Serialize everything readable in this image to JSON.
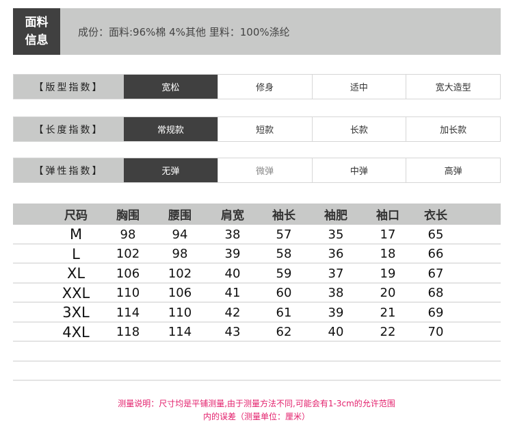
{
  "material": {
    "label_line1": "面料",
    "label_line2": "信息",
    "text": "成份：面料:96%棉 4%其他  里料：100%涤纶"
  },
  "indices": [
    {
      "label": "【版型指数】",
      "options": [
        "宽松",
        "修身",
        "适中",
        "宽大造型"
      ],
      "selected": 0
    },
    {
      "label": "【长度指数】",
      "options": [
        "常规款",
        "短款",
        "长款",
        "加长款"
      ],
      "selected": 0
    },
    {
      "label": "【弹性指数】",
      "options": [
        "无弹",
        "微弹",
        "中弹",
        "高弹"
      ],
      "selected": 0
    }
  ],
  "size_table": {
    "headers": [
      "尺码",
      "胸围",
      "腰围",
      "肩宽",
      "袖长",
      "袖肥",
      "袖口",
      "衣长"
    ],
    "rows": [
      [
        "M",
        "98",
        "94",
        "38",
        "57",
        "35",
        "17",
        "65"
      ],
      [
        "L",
        "102",
        "98",
        "39",
        "58",
        "36",
        "18",
        "66"
      ],
      [
        "XL",
        "106",
        "102",
        "40",
        "59",
        "37",
        "19",
        "67"
      ],
      [
        "XXL",
        "110",
        "106",
        "41",
        "60",
        "38",
        "20",
        "68"
      ],
      [
        "3XL",
        "114",
        "110",
        "42",
        "61",
        "39",
        "21",
        "69"
      ],
      [
        "4XL",
        "118",
        "114",
        "43",
        "62",
        "40",
        "22",
        "70"
      ]
    ]
  },
  "note": {
    "line1": "测量说明：尺寸均是平铺测量,由于测量方法不同,可能会有1-3cm的允许范围",
    "line2": "内的误差（测量单位：厘米）"
  },
  "colors": {
    "dark": "#404040",
    "gray": "#c8c9c8",
    "note": "#e3206c"
  }
}
